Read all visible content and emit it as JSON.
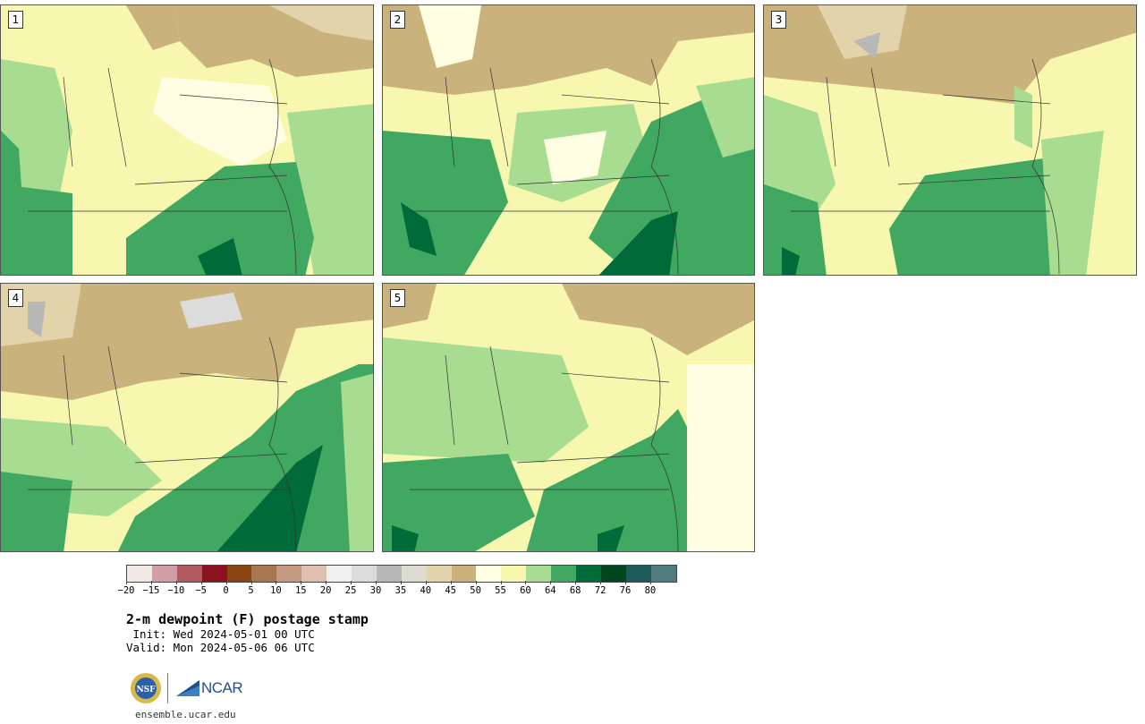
{
  "panels": [
    {
      "label": "1"
    },
    {
      "label": "2"
    },
    {
      "label": "3"
    },
    {
      "label": "4"
    },
    {
      "label": "5"
    }
  ],
  "colorbar": {
    "colors": [
      "#f3e8e8",
      "#cf9fa5",
      "#b05a60",
      "#8b1420",
      "#8b4513",
      "#a87650",
      "#c39a7f",
      "#dfc0b0",
      "#f0f0f0",
      "#dcdcdc",
      "#b8b8b8",
      "#dcdcd0",
      "#e2d3ab",
      "#c9b27c",
      "#fffde2",
      "#f7f7b0",
      "#a8dc90",
      "#40a860",
      "#006a38",
      "#004520",
      "#1e5a5a",
      "#4f7d7d"
    ],
    "tick_labels": [
      "−20",
      "−15",
      "−10",
      "−5",
      "0",
      "5",
      "10",
      "15",
      "20",
      "25",
      "30",
      "35",
      "40",
      "45",
      "50",
      "55",
      "60",
      "64",
      "68",
      "72",
      "76",
      "80"
    ]
  },
  "title": "2-m dewpoint (F) postage stamp",
  "init": " Init: Wed 2024-05-01 00 UTC",
  "valid": "Valid: Mon 2024-05-06 06 UTC",
  "logos": {
    "nsf": "NSF",
    "ncar": "NCAR"
  },
  "site": "ensemble.ucar.edu"
}
